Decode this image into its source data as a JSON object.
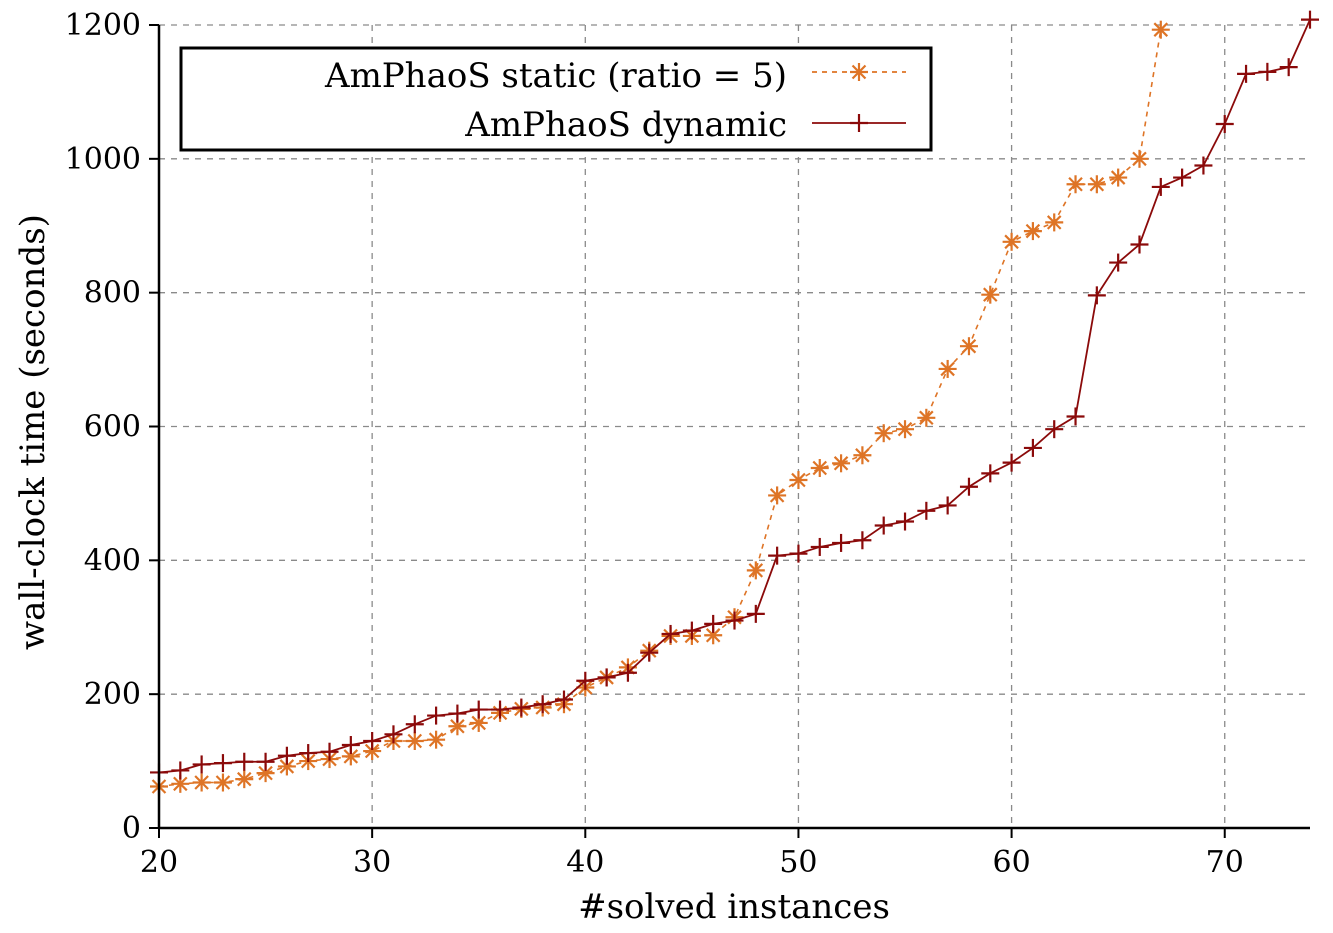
{
  "chart_data": {
    "type": "line",
    "title": "",
    "xlabel": "#solved instances",
    "ylabel": "wall-clock time (seconds)",
    "xlim": [
      20,
      74
    ],
    "ylim": [
      0,
      1200
    ],
    "xticks": [
      20,
      30,
      40,
      50,
      60,
      70
    ],
    "yticks": [
      0,
      200,
      400,
      600,
      800,
      1000,
      1200
    ],
    "grid": true,
    "legend_position": "top-left",
    "series": [
      {
        "name": "AmPhaoS static (ratio = 5)",
        "color": "#de7426",
        "line_style": "dashed",
        "marker": "asterisk",
        "x": [
          20,
          21,
          22,
          23,
          24,
          25,
          26,
          27,
          28,
          29,
          30,
          31,
          32,
          33,
          34,
          35,
          36,
          37,
          38,
          39,
          40,
          41,
          42,
          43,
          44,
          45,
          46,
          47,
          48,
          49,
          50,
          51,
          52,
          53,
          54,
          55,
          56,
          57,
          58,
          59,
          60,
          61,
          62,
          63,
          64,
          65,
          66,
          67
        ],
        "y": [
          62,
          66,
          68,
          68,
          73,
          82,
          92,
          100,
          103,
          107,
          115,
          130,
          130,
          132,
          152,
          157,
          172,
          178,
          180,
          185,
          210,
          225,
          240,
          265,
          287,
          287,
          288,
          315,
          385,
          497,
          520,
          538,
          545,
          557,
          590,
          596,
          613,
          686,
          720,
          797,
          876,
          892,
          905,
          962,
          962,
          972,
          1000,
          1193
        ]
      },
      {
        "name": "AmPhaoS dynamic",
        "color": "#8b0a0a",
        "line_style": "solid",
        "marker": "plus",
        "x": [
          20,
          21,
          22,
          23,
          24,
          25,
          26,
          27,
          28,
          29,
          30,
          31,
          32,
          33,
          34,
          35,
          36,
          37,
          38,
          39,
          40,
          41,
          42,
          43,
          44,
          45,
          46,
          47,
          48,
          49,
          50,
          51,
          52,
          53,
          54,
          55,
          56,
          57,
          58,
          59,
          60,
          61,
          62,
          63,
          64,
          65,
          66,
          67,
          68,
          69,
          70,
          71,
          72,
          73,
          74
        ],
        "y": [
          83,
          86,
          95,
          97,
          99,
          99,
          108,
          112,
          114,
          124,
          130,
          140,
          155,
          168,
          171,
          177,
          177,
          180,
          185,
          192,
          220,
          225,
          232,
          262,
          290,
          295,
          305,
          310,
          320,
          407,
          410,
          420,
          426,
          430,
          452,
          458,
          474,
          482,
          510,
          530,
          546,
          568,
          596,
          615,
          796,
          845,
          872,
          958,
          972,
          990,
          1052,
          1127,
          1130,
          1137,
          1208
        ]
      }
    ]
  }
}
